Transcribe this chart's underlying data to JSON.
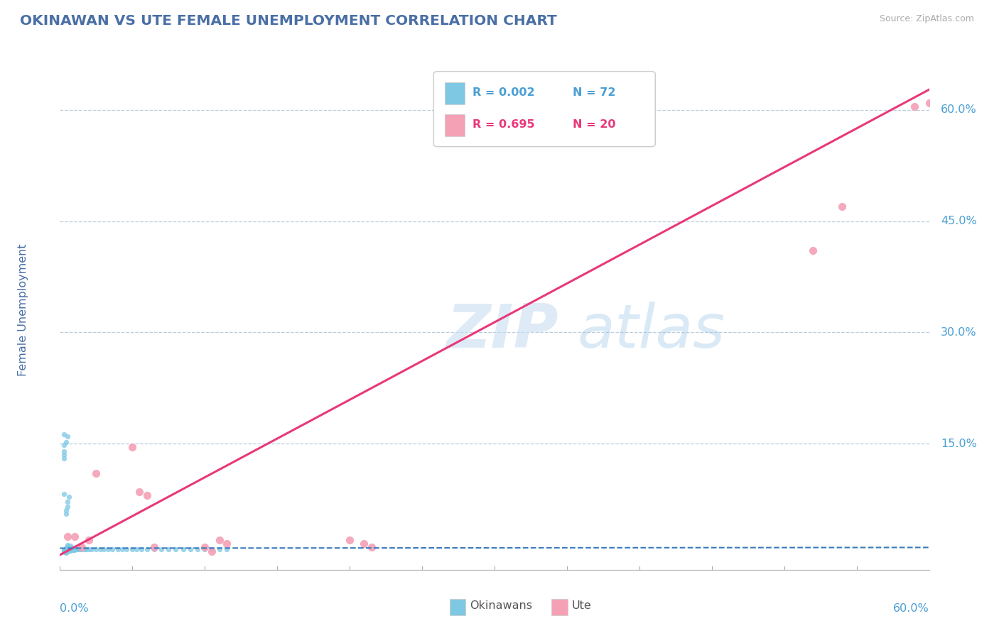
{
  "title": "OKINAWAN VS UTE FEMALE UNEMPLOYMENT CORRELATION CHART",
  "source_text": "Source: ZipAtlas.com",
  "ylabel": "Female Unemployment",
  "ytick_labels": [
    "15.0%",
    "30.0%",
    "45.0%",
    "60.0%"
  ],
  "ytick_values": [
    0.15,
    0.3,
    0.45,
    0.6
  ],
  "xmin": 0.0,
  "xmax": 0.6,
  "ymin": -0.02,
  "ymax": 0.68,
  "legend_r1": "R = 0.002",
  "legend_n1": "N = 72",
  "legend_r2": "R = 0.695",
  "legend_n2": "N = 20",
  "watermark_zip": "ZIP",
  "watermark_atlas": "atlas",
  "okinawan_color": "#7ec8e3",
  "ute_color": "#f4a0b5",
  "okinawan_trend_color": "#3a7abf",
  "ute_trend_color": "#e8387a",
  "grid_color": "#bbccdd",
  "title_color": "#4a6fa5",
  "axis_label_color": "#4a6fa5",
  "tick_color": "#4a9fd4",
  "legend_r_color": "#4a9fd4",
  "legend_r2_color": "#e8387a",
  "okinawan_x": [
    0.003,
    0.003,
    0.003,
    0.004,
    0.004,
    0.004,
    0.005,
    0.005,
    0.005,
    0.005,
    0.005,
    0.006,
    0.006,
    0.006,
    0.007,
    0.007,
    0.007,
    0.008,
    0.008,
    0.009,
    0.009,
    0.01,
    0.01,
    0.011,
    0.012,
    0.013,
    0.014,
    0.015,
    0.017,
    0.018,
    0.02,
    0.022,
    0.025,
    0.028,
    0.03,
    0.033,
    0.036,
    0.04,
    0.043,
    0.046,
    0.05,
    0.053,
    0.056,
    0.06,
    0.065,
    0.07,
    0.075,
    0.08,
    0.085,
    0.09,
    0.095,
    0.1,
    0.105,
    0.11,
    0.115,
    0.003,
    0.004,
    0.005,
    0.003,
    0.004,
    0.004,
    0.005,
    0.005,
    0.006,
    0.003,
    0.003,
    0.004,
    0.003,
    0.003,
    0.003,
    0.004,
    0.004
  ],
  "okinawan_y": [
    0.005,
    0.006,
    0.007,
    0.005,
    0.007,
    0.009,
    0.005,
    0.007,
    0.009,
    0.011,
    0.013,
    0.006,
    0.008,
    0.01,
    0.006,
    0.009,
    0.012,
    0.007,
    0.009,
    0.007,
    0.009,
    0.007,
    0.009,
    0.008,
    0.008,
    0.008,
    0.008,
    0.008,
    0.008,
    0.008,
    0.008,
    0.008,
    0.008,
    0.008,
    0.008,
    0.008,
    0.008,
    0.008,
    0.008,
    0.008,
    0.008,
    0.008,
    0.008,
    0.008,
    0.008,
    0.008,
    0.008,
    0.008,
    0.008,
    0.008,
    0.008,
    0.008,
    0.008,
    0.008,
    0.008,
    0.148,
    0.152,
    0.16,
    0.163,
    0.055,
    0.06,
    0.065,
    0.072,
    0.078,
    0.082,
    0.004,
    0.005,
    0.13,
    0.135,
    0.14,
    0.003,
    0.004
  ],
  "ute_x": [
    0.005,
    0.01,
    0.015,
    0.02,
    0.025,
    0.05,
    0.055,
    0.06,
    0.065,
    0.1,
    0.105,
    0.11,
    0.115,
    0.2,
    0.21,
    0.215,
    0.52,
    0.54,
    0.59,
    0.6
  ],
  "ute_y": [
    0.025,
    0.025,
    0.01,
    0.02,
    0.11,
    0.145,
    0.085,
    0.08,
    0.01,
    0.01,
    0.005,
    0.02,
    0.015,
    0.02,
    0.015,
    0.01,
    0.41,
    0.47,
    0.605,
    0.61
  ],
  "ute_trend_x0": 0.0,
  "ute_trend_x1": 0.612,
  "ute_trend_y0": 0.0,
  "ute_trend_y1": 0.64,
  "okinawan_trend_x0": 0.0,
  "okinawan_trend_x1": 0.6,
  "okinawan_trend_y0": 0.009,
  "okinawan_trend_y1": 0.01
}
